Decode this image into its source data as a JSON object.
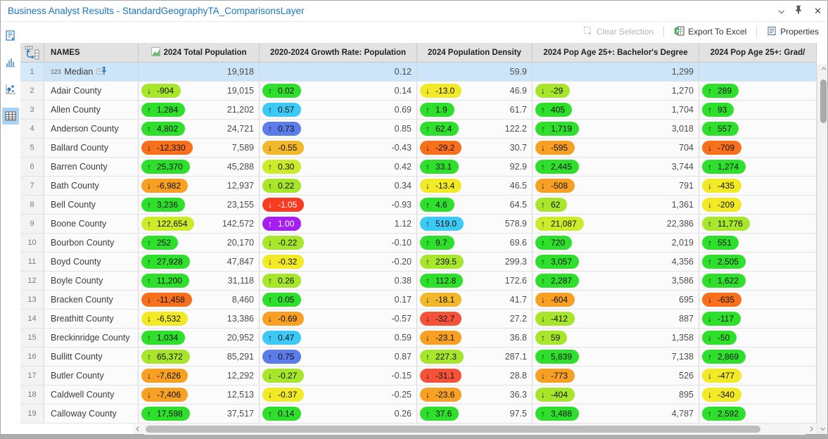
{
  "window": {
    "title": "Business Analyst Results - StandardGeographyTA_ComparisonsLayer"
  },
  "toolbar": {
    "clear_selection_label": "Clear Selection",
    "export_label": "Export To Excel",
    "properties_label": "Properties"
  },
  "sidebar": {
    "items": [
      {
        "name": "report-view"
      },
      {
        "name": "histogram-view"
      },
      {
        "name": "scatter-plot-view"
      },
      {
        "name": "table-view",
        "selected": true
      }
    ]
  },
  "palette": {
    "green": {
      "bg": "#2ee02b"
    },
    "chartreuse": {
      "bg": "#a8e62c"
    },
    "lime_yellow": {
      "bg": "#cdea2b"
    },
    "yellow": {
      "bg": "#f3ea27"
    },
    "amber": {
      "bg": "#f2b72b"
    },
    "orange": {
      "bg": "#f7a023"
    },
    "orange_red": {
      "bg": "#f9701c"
    },
    "tomato": {
      "bg": "#f4533a"
    },
    "red": {
      "bg": "#fb3a22",
      "fg": "#ffffff"
    },
    "cyan": {
      "bg": "#3dc9f5"
    },
    "blue": {
      "bg": "#5c7de9"
    },
    "purple": {
      "bg": "#a51ff0",
      "fg": "#ffffff"
    },
    "selected_row": "#cde5f8",
    "title_text": "#1a76c1"
  },
  "table": {
    "columns": [
      {
        "label": "NAMES"
      },
      {
        "label": "2024 Total Population",
        "has_icon": true
      },
      {
        "label": "2020-2024 Growth Rate: Population"
      },
      {
        "label": "2024 Population Density"
      },
      {
        "label": "2024 Pop Age 25+: Bachelor's Degree"
      },
      {
        "label": "2024 Pop Age 25+: Grad/"
      }
    ],
    "rows": [
      {
        "num": "1",
        "name": "Median",
        "selected": true,
        "pinned": true,
        "prefix": "123",
        "cells": [
          {
            "value": "19,918"
          },
          {
            "value": "0.12"
          },
          {
            "value": "59.9"
          },
          {
            "value": "1,299"
          },
          {}
        ]
      },
      {
        "num": "2",
        "name": "Adair County",
        "cells": [
          {
            "pill": [
              "chartreuse",
              "down",
              "-904"
            ],
            "value": "19,015"
          },
          {
            "pill": [
              "green",
              "up",
              "0.02"
            ],
            "value": "0.14"
          },
          {
            "pill": [
              "yellow",
              "down",
              "-13.0"
            ],
            "value": "46.9"
          },
          {
            "pill": [
              "chartreuse",
              "down",
              "-29"
            ],
            "value": "1,270"
          },
          {
            "pill": [
              "green",
              "up",
              "289"
            ]
          }
        ]
      },
      {
        "num": "3",
        "name": "Allen County",
        "cells": [
          {
            "pill": [
              "green",
              "up",
              "1,284"
            ],
            "value": "21,202"
          },
          {
            "pill": [
              "cyan",
              "up",
              "0.57"
            ],
            "value": "0.69"
          },
          {
            "pill": [
              "green",
              "up",
              "1.9"
            ],
            "value": "61.7"
          },
          {
            "pill": [
              "green",
              "up",
              "405"
            ],
            "value": "1,704"
          },
          {
            "pill": [
              "green",
              "up",
              "93"
            ]
          }
        ]
      },
      {
        "num": "4",
        "name": "Anderson County",
        "cells": [
          {
            "pill": [
              "green",
              "up",
              "4,802"
            ],
            "value": "24,721"
          },
          {
            "pill": [
              "blue",
              "up",
              "0.73"
            ],
            "value": "0.85"
          },
          {
            "pill": [
              "green",
              "up",
              "62.4"
            ],
            "value": "122.2"
          },
          {
            "pill": [
              "green",
              "up",
              "1,719"
            ],
            "value": "3,018"
          },
          {
            "pill": [
              "green",
              "up",
              "557"
            ]
          }
        ]
      },
      {
        "num": "5",
        "name": "Ballard County",
        "cells": [
          {
            "pill": [
              "orange_red",
              "down",
              "-12,330"
            ],
            "value": "7,589"
          },
          {
            "pill": [
              "amber",
              "down",
              "-0.55"
            ],
            "value": "-0.43"
          },
          {
            "pill": [
              "orange_red",
              "down",
              "-29.2"
            ],
            "value": "30.7"
          },
          {
            "pill": [
              "orange",
              "down",
              "-595"
            ],
            "value": "704"
          },
          {
            "pill": [
              "orange_red",
              "down",
              "-709"
            ]
          }
        ]
      },
      {
        "num": "6",
        "name": "Barren County",
        "cells": [
          {
            "pill": [
              "green",
              "up",
              "25,370"
            ],
            "value": "45,288"
          },
          {
            "pill": [
              "lime_yellow",
              "up",
              "0.30"
            ],
            "value": "0.42"
          },
          {
            "pill": [
              "green",
              "up",
              "33.1"
            ],
            "value": "92.9"
          },
          {
            "pill": [
              "green",
              "up",
              "2,445"
            ],
            "value": "3,744"
          },
          {
            "pill": [
              "green",
              "up",
              "1,274"
            ]
          }
        ]
      },
      {
        "num": "7",
        "name": "Bath County",
        "cells": [
          {
            "pill": [
              "orange",
              "down",
              "-6,982"
            ],
            "value": "12,937"
          },
          {
            "pill": [
              "chartreuse",
              "up",
              "0.22"
            ],
            "value": "0.34"
          },
          {
            "pill": [
              "yellow",
              "down",
              "-13.4"
            ],
            "value": "46.5"
          },
          {
            "pill": [
              "orange",
              "down",
              "-508"
            ],
            "value": "791"
          },
          {
            "pill": [
              "yellow",
              "down",
              "-435"
            ]
          }
        ]
      },
      {
        "num": "8",
        "name": "Bell County",
        "cells": [
          {
            "pill": [
              "green",
              "up",
              "3,236"
            ],
            "value": "23,155"
          },
          {
            "pill": [
              "red",
              "down",
              "-1.05"
            ],
            "value": "-0.93"
          },
          {
            "pill": [
              "green",
              "up",
              "4.6"
            ],
            "value": "64.5"
          },
          {
            "pill": [
              "chartreuse",
              "up",
              "62"
            ],
            "value": "1,361"
          },
          {
            "pill": [
              "yellow",
              "down",
              "-209"
            ]
          }
        ]
      },
      {
        "num": "9",
        "name": "Boone County",
        "cells": [
          {
            "pill": [
              "lime_yellow",
              "up",
              "122,654"
            ],
            "value": "142,572"
          },
          {
            "pill": [
              "purple",
              "up",
              "1.00"
            ],
            "value": "1.12"
          },
          {
            "pill": [
              "cyan",
              "up",
              "519.0"
            ],
            "value": "578.9"
          },
          {
            "pill": [
              "lime_yellow",
              "up",
              "21,087"
            ],
            "value": "22,386"
          },
          {
            "pill": [
              "chartreuse",
              "up",
              "11,776"
            ]
          }
        ]
      },
      {
        "num": "10",
        "name": "Bourbon County",
        "cells": [
          {
            "pill": [
              "green",
              "up",
              "252"
            ],
            "value": "20,170"
          },
          {
            "pill": [
              "chartreuse",
              "down",
              "-0.22"
            ],
            "value": "-0.10"
          },
          {
            "pill": [
              "green",
              "up",
              "9.7"
            ],
            "value": "69.6"
          },
          {
            "pill": [
              "green",
              "up",
              "720"
            ],
            "value": "2,019"
          },
          {
            "pill": [
              "green",
              "up",
              "551"
            ]
          }
        ]
      },
      {
        "num": "11",
        "name": "Boyd County",
        "cells": [
          {
            "pill": [
              "green",
              "up",
              "27,928"
            ],
            "value": "47,847"
          },
          {
            "pill": [
              "yellow",
              "down",
              "-0.32"
            ],
            "value": "-0.20"
          },
          {
            "pill": [
              "chartreuse",
              "up",
              "239.5"
            ],
            "value": "299.3"
          },
          {
            "pill": [
              "green",
              "up",
              "3,057"
            ],
            "value": "4,356"
          },
          {
            "pill": [
              "green",
              "up",
              "2,505"
            ]
          }
        ]
      },
      {
        "num": "12",
        "name": "Boyle County",
        "cells": [
          {
            "pill": [
              "green",
              "up",
              "11,200"
            ],
            "value": "31,118"
          },
          {
            "pill": [
              "chartreuse",
              "up",
              "0.26"
            ],
            "value": "0.38"
          },
          {
            "pill": [
              "green",
              "up",
              "112.8"
            ],
            "value": "172.6"
          },
          {
            "pill": [
              "green",
              "up",
              "2,287"
            ],
            "value": "3,586"
          },
          {
            "pill": [
              "green",
              "up",
              "1,622"
            ]
          }
        ]
      },
      {
        "num": "13",
        "name": "Bracken County",
        "cells": [
          {
            "pill": [
              "orange_red",
              "down",
              "-11,458"
            ],
            "value": "8,460"
          },
          {
            "pill": [
              "green",
              "up",
              "0.05"
            ],
            "value": "0.17"
          },
          {
            "pill": [
              "amber",
              "down",
              "-18.1"
            ],
            "value": "41.7"
          },
          {
            "pill": [
              "orange",
              "down",
              "-604"
            ],
            "value": "695"
          },
          {
            "pill": [
              "orange_red",
              "down",
              "-635"
            ]
          }
        ]
      },
      {
        "num": "14",
        "name": "Breathitt County",
        "cells": [
          {
            "pill": [
              "yellow",
              "down",
              "-6,532"
            ],
            "value": "13,386"
          },
          {
            "pill": [
              "orange",
              "down",
              "-0.69"
            ],
            "value": "-0.57"
          },
          {
            "pill": [
              "tomato",
              "down",
              "-32.7"
            ],
            "value": "27.2"
          },
          {
            "pill": [
              "chartreuse",
              "down",
              "-412"
            ],
            "value": "887"
          },
          {
            "pill": [
              "green",
              "down",
              "-117"
            ]
          }
        ]
      },
      {
        "num": "15",
        "name": "Breckinridge County",
        "cells": [
          {
            "pill": [
              "green",
              "up",
              "1,034"
            ],
            "value": "20,952"
          },
          {
            "pill": [
              "cyan",
              "up",
              "0.47"
            ],
            "value": "0.59"
          },
          {
            "pill": [
              "orange",
              "down",
              "-23.1"
            ],
            "value": "36.8"
          },
          {
            "pill": [
              "chartreuse",
              "up",
              "59"
            ],
            "value": "1,358"
          },
          {
            "pill": [
              "green",
              "down",
              "-50"
            ]
          }
        ]
      },
      {
        "num": "16",
        "name": "Bullitt County",
        "cells": [
          {
            "pill": [
              "chartreuse",
              "up",
              "65,372"
            ],
            "value": "85,291"
          },
          {
            "pill": [
              "blue",
              "up",
              "0.75"
            ],
            "value": "0.87"
          },
          {
            "pill": [
              "chartreuse",
              "up",
              "227.3"
            ],
            "value": "287.1"
          },
          {
            "pill": [
              "green",
              "up",
              "5,839"
            ],
            "value": "7,138"
          },
          {
            "pill": [
              "green",
              "up",
              "2,869"
            ]
          }
        ]
      },
      {
        "num": "17",
        "name": "Butler County",
        "cells": [
          {
            "pill": [
              "orange",
              "down",
              "-7,626"
            ],
            "value": "12,292"
          },
          {
            "pill": [
              "chartreuse",
              "down",
              "-0.27"
            ],
            "value": "-0.15"
          },
          {
            "pill": [
              "tomato",
              "down",
              "-31.1"
            ],
            "value": "28.8"
          },
          {
            "pill": [
              "orange",
              "down",
              "-773"
            ],
            "value": "526"
          },
          {
            "pill": [
              "yellow",
              "down",
              "-477"
            ]
          }
        ]
      },
      {
        "num": "18",
        "name": "Caldwell County",
        "cells": [
          {
            "pill": [
              "orange",
              "down",
              "-7,406"
            ],
            "value": "12,513"
          },
          {
            "pill": [
              "yellow",
              "down",
              "-0.37"
            ],
            "value": "-0.25"
          },
          {
            "pill": [
              "orange",
              "down",
              "-23.6"
            ],
            "value": "36.3"
          },
          {
            "pill": [
              "chartreuse",
              "down",
              "-404"
            ],
            "value": "895"
          },
          {
            "pill": [
              "yellow",
              "down",
              "-340"
            ]
          }
        ]
      },
      {
        "num": "19",
        "name": "Calloway County",
        "cells": [
          {
            "pill": [
              "green",
              "up",
              "17,598"
            ],
            "value": "37,517"
          },
          {
            "pill": [
              "green",
              "up",
              "0.14"
            ],
            "value": "0.26"
          },
          {
            "pill": [
              "green",
              "up",
              "37.6"
            ],
            "value": "97.5"
          },
          {
            "pill": [
              "green",
              "up",
              "3,488"
            ],
            "value": "4,787"
          },
          {
            "pill": [
              "green",
              "up",
              "2,592"
            ]
          }
        ]
      }
    ]
  }
}
